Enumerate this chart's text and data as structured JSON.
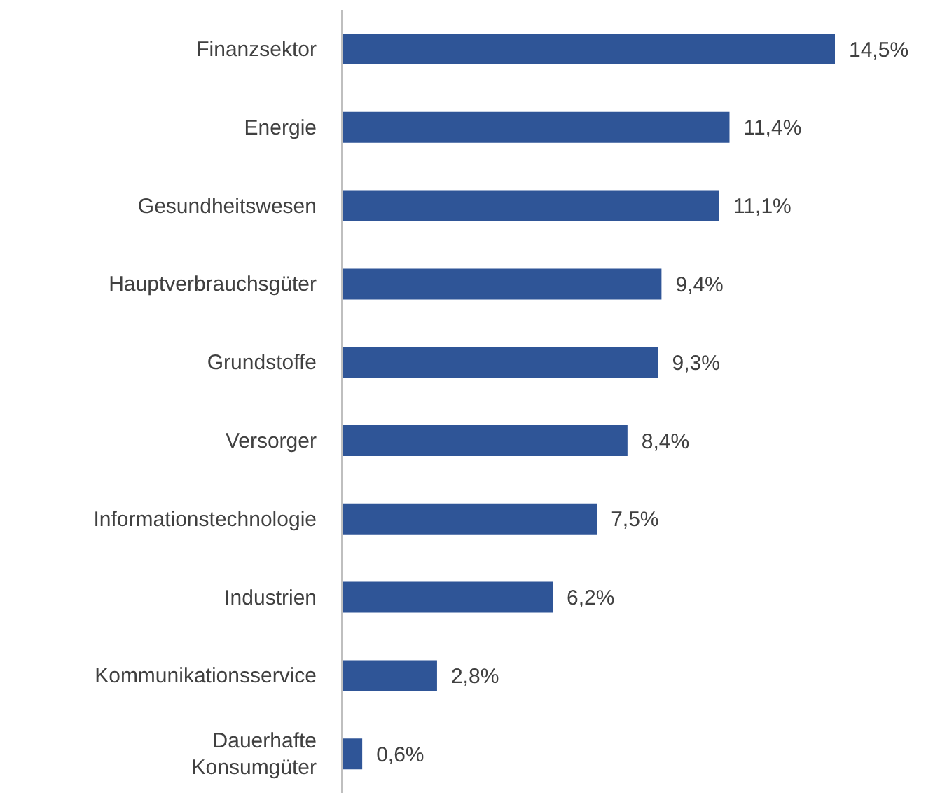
{
  "chart_data": {
    "type": "bar",
    "orientation": "horizontal",
    "categories": [
      "Finanzsektor",
      "Energie",
      "Gesundheitswesen",
      "Hauptverbrauchsgüter",
      "Grundstoffe",
      "Versorger",
      "Informationstechnologie",
      "Industrien",
      "Kommunikationsservice",
      "Dauerhafte\nKonsumgüter"
    ],
    "values": [
      14.5,
      11.4,
      11.1,
      9.4,
      9.3,
      8.4,
      7.5,
      6.2,
      2.8,
      0.6
    ],
    "value_labels": [
      "14,5%",
      "11,4%",
      "11,1%",
      "9,4%",
      "9,3%",
      "8,4%",
      "7,5%",
      "6,2%",
      "2,8%",
      "0,6%"
    ],
    "color": "#2f5597",
    "grid": false,
    "legend": false
  }
}
